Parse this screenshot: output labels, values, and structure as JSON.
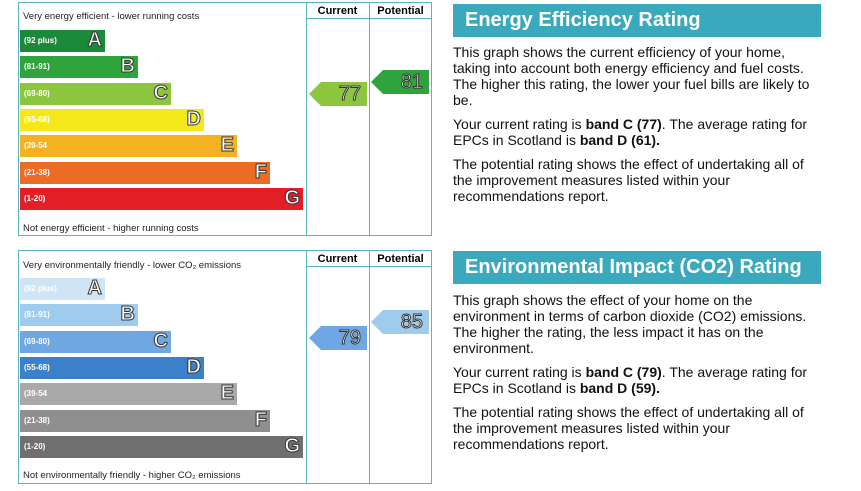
{
  "energy": {
    "top_caption": "Very energy efficient - lower running costs",
    "bottom_caption": "Not energy efficient - higher running costs",
    "col_current": "Current",
    "col_potential": "Potential",
    "bands": [
      {
        "range": "(92 plus)",
        "letter": "A",
        "color": "#1a8a3a"
      },
      {
        "range": "(81-91)",
        "letter": "B",
        "color": "#2fa43c"
      },
      {
        "range": "(69-80)",
        "letter": "C",
        "color": "#8cc63e"
      },
      {
        "range": "(55-68)",
        "letter": "D",
        "color": "#f5e81a"
      },
      {
        "range": "(39-54",
        "letter": "E",
        "color": "#f5b220"
      },
      {
        "range": "(21-38)",
        "letter": "F",
        "color": "#ec6b25"
      },
      {
        "range": "(1-20)",
        "letter": "G",
        "color": "#e21f26"
      }
    ],
    "current": "77",
    "current_color": "#8cc63e",
    "potential": "81",
    "potential_color": "#2fa43c"
  },
  "env": {
    "top_caption": "Very environmentally friendly - lower CO₂ emissions",
    "bottom_caption": "Not environmentally friendly - higher CO₂ emissions",
    "col_current": "Current",
    "col_potential": "Potential",
    "bands": [
      {
        "range": "(92 plus)",
        "letter": "A",
        "color": "#cfe5f5"
      },
      {
        "range": "(81-91)",
        "letter": "B",
        "color": "#9fcbec"
      },
      {
        "range": "(69-80)",
        "letter": "C",
        "color": "#6ea7e2"
      },
      {
        "range": "(55-68)",
        "letter": "D",
        "color": "#3b80c9"
      },
      {
        "range": "(39-54",
        "letter": "E",
        "color": "#a9a9a9"
      },
      {
        "range": "(21-38)",
        "letter": "F",
        "color": "#8f8f8f"
      },
      {
        "range": "(1-20)",
        "letter": "G",
        "color": "#6f6f6f"
      }
    ],
    "current": "79",
    "current_color": "#6ea7e2",
    "potential": "85",
    "potential_color": "#9fcbec"
  },
  "side": {
    "energy_title": "Energy Efficiency Rating",
    "energy_p1": "This graph shows the current efficiency of your home, taking into account both energy efficiency and fuel costs. The higher this rating, the lower your fuel bills are likely to be.",
    "energy_p2_pre": "Your current rating is ",
    "energy_p2_b1": "band C (77)",
    "energy_p2_mid": ". The average rating for EPCs in Scotland is ",
    "energy_p2_b2": "band D (61).",
    "energy_p3": "The potential rating shows the effect of undertaking all of the improvement measures listed within your recommendations report.",
    "env_title": "Environmental Impact (CO2) Rating",
    "env_p1": "This graph shows the effect of your home on the environment in terms of carbon dioxide (CO2) emissions. The higher the rating, the less impact it has on the environment.",
    "env_p2_pre": "Your current rating is ",
    "env_p2_b1": "band C (79)",
    "env_p2_mid": ". The average rating for EPCs in Scotland is ",
    "env_p2_b2": "band D (59).",
    "env_p3": "The potential rating shows the effect of undertaking all of the improvement measures listed within your recommendations report."
  },
  "chart_data": [
    {
      "type": "bar",
      "title": "Energy Efficiency Rating",
      "categories": [
        "A",
        "B",
        "C",
        "D",
        "E",
        "F",
        "G"
      ],
      "current": 77,
      "potential": 81
    },
    {
      "type": "bar",
      "title": "Environmental Impact (CO2) Rating",
      "categories": [
        "A",
        "B",
        "C",
        "D",
        "E",
        "F",
        "G"
      ],
      "current": 79,
      "potential": 85
    }
  ]
}
